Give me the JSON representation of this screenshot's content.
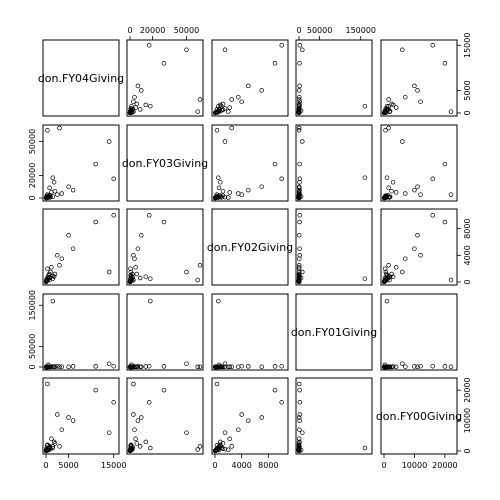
{
  "chart_data": {
    "type": "scatter",
    "title": "",
    "variables": [
      {
        "name": "don.FY04Giving",
        "range": [
          0,
          15500
        ],
        "ticks": [
          0,
          5000,
          15000
        ]
      },
      {
        "name": "don.FY03Giving",
        "range": [
          0,
          62000
        ],
        "ticks": [
          0,
          20000,
          50000
        ]
      },
      {
        "name": "don.FY02Giving",
        "range": [
          0,
          10500
        ],
        "ticks": [
          0,
          4000,
          8000
        ]
      },
      {
        "name": "don.FY01Giving",
        "range": [
          0,
          170000
        ],
        "ticks": [
          0,
          50000,
          150000
        ]
      },
      {
        "name": "don.FY00Giving",
        "range": [
          0,
          23000
        ],
        "ticks": [
          0,
          10000,
          20000
        ]
      }
    ],
    "axis_placement": {
      "top": [
        1,
        3
      ],
      "bottom": [
        0,
        2,
        4
      ],
      "left": [
        1,
        3
      ],
      "right": [
        0,
        2,
        4
      ]
    },
    "records": [
      [
        15000,
        17000,
        10000,
        2000,
        16000
      ],
      [
        11000,
        30000,
        9000,
        1500,
        20000
      ],
      [
        14000,
        50000,
        1500,
        8000,
        6000
      ],
      [
        5000,
        10000,
        7000,
        500,
        11000
      ],
      [
        6000,
        7000,
        5000,
        1500,
        10000
      ],
      [
        3500,
        4000,
        3500,
        800,
        7000
      ],
      [
        2500,
        3000,
        4000,
        2000,
        12000
      ],
      [
        3000,
        62000,
        2500,
        500,
        1500
      ],
      [
        1500,
        18000,
        500,
        160000,
        1000
      ],
      [
        300,
        60000,
        300,
        200,
        500
      ],
      [
        2000,
        6000,
        1200,
        300,
        2500
      ],
      [
        1200,
        5000,
        2200,
        600,
        4000
      ],
      [
        800,
        9000,
        600,
        400,
        1500
      ],
      [
        1800,
        14000,
        800,
        1200,
        3000
      ],
      [
        300,
        3000,
        300,
        500,
        22000
      ],
      [
        400,
        1000,
        800,
        300,
        2000
      ],
      [
        600,
        500,
        1000,
        200,
        1000
      ],
      [
        200,
        2000,
        200,
        100,
        500
      ],
      [
        100,
        1500,
        400,
        300,
        800
      ],
      [
        150,
        300,
        150,
        1000,
        200
      ],
      [
        500,
        1200,
        600,
        5000,
        300
      ],
      [
        900,
        2500,
        700,
        100,
        1200
      ],
      [
        50,
        100,
        50,
        200,
        100
      ],
      [
        1000,
        800,
        1500,
        700,
        600
      ],
      [
        250,
        500,
        300,
        100,
        1800
      ],
      [
        700,
        2000,
        1200,
        300,
        800
      ],
      [
        1500,
        1200,
        900,
        1000,
        1500
      ],
      [
        300,
        400,
        2000,
        200,
        400
      ],
      [
        100,
        200,
        100,
        50,
        300
      ],
      [
        50,
        50,
        30,
        20,
        100
      ],
      [
        200,
        400,
        200,
        100,
        200
      ],
      [
        20,
        20,
        20,
        10,
        30
      ],
      [
        60,
        100,
        80,
        30,
        50
      ],
      [
        400,
        300,
        500,
        150,
        600
      ],
      [
        800,
        600,
        300,
        400,
        900
      ]
    ]
  }
}
